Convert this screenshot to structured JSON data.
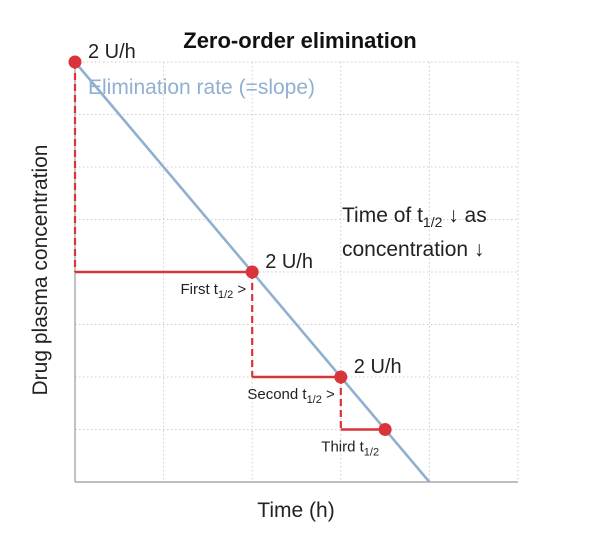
{
  "chart_data": {
    "type": "line",
    "title": "Zero-order elimination",
    "xlabel": "Time (h)",
    "ylabel": "Drug plasma concentration",
    "grid": true,
    "slope_label": "Elimination rate (=slope)",
    "series": [
      {
        "values": [
          8,
          6,
          4,
          2,
          0
        ]
      }
    ],
    "x": [
      0,
      1,
      2,
      3,
      4
    ],
    "xlim": [
      0,
      5
    ],
    "ylim": [
      0,
      8
    ],
    "points": [
      {
        "x": 0,
        "y": 8,
        "label": "2 U/h"
      },
      {
        "x": 2,
        "y": 4,
        "label": "2 U/h"
      },
      {
        "x": 3,
        "y": 2,
        "label": "2 U/h"
      },
      {
        "x": 3.5,
        "y": 1,
        "label": ""
      }
    ],
    "half_lives": [
      {
        "prefix": "First t",
        "sub": "1/2",
        "suffix": " >",
        "from": {
          "x": 0,
          "y": 8
        },
        "to": {
          "x": 2,
          "y": 4
        }
      },
      {
        "prefix": "Second t",
        "sub": "1/2",
        "suffix": " >",
        "from": {
          "x": 2,
          "y": 4
        },
        "to": {
          "x": 3,
          "y": 2
        }
      },
      {
        "prefix": "Third t",
        "sub": "1/2",
        "suffix": "",
        "from": {
          "x": 3,
          "y": 2
        },
        "to": {
          "x": 3.5,
          "y": 1
        }
      }
    ],
    "annotation": {
      "line1_prefix": "Time of t",
      "line1_sub": "1/2",
      "line1_suffix": " ↓ as",
      "line2": "concentration ↓"
    },
    "colors": {
      "line": "#8fb0d0",
      "marker": "#d9343a",
      "grid": "#cccccc",
      "axis": "#999999"
    }
  }
}
